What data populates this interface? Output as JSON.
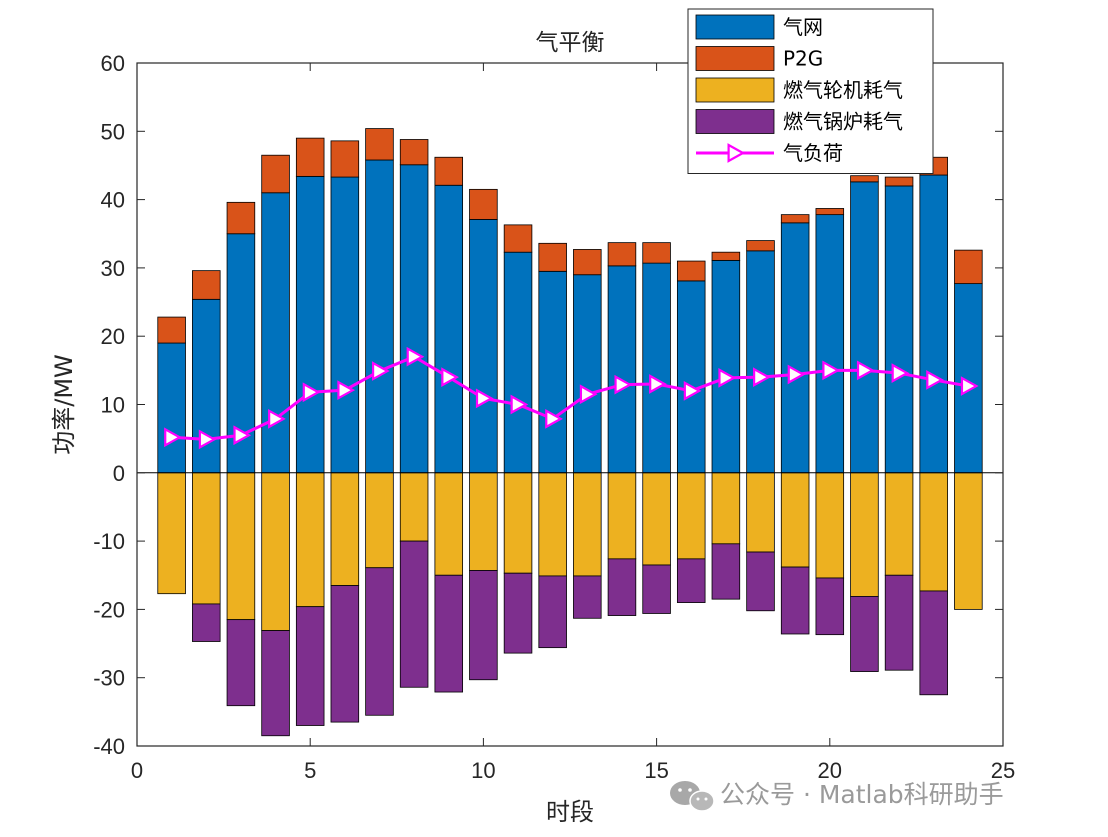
{
  "colors": {
    "grid": "#0072BD",
    "p2g": "#D95319",
    "gt": "#EDB120",
    "boiler": "#7E2F8E",
    "load": "#FF00FF",
    "axis": "#262626"
  },
  "watermark": {
    "text": "公众号 · Matlab科研助手",
    "icon": "wechat-icon"
  },
  "chart_data": {
    "type": "bar",
    "stacked": true,
    "title": "气平衡",
    "xlabel": "时段",
    "ylabel": "功率/MW",
    "xlim": [
      0,
      25
    ],
    "ylim": [
      -40,
      60
    ],
    "xticks": [
      0,
      5,
      10,
      15,
      20,
      25
    ],
    "yticks": [
      -40,
      -30,
      -20,
      -10,
      0,
      10,
      20,
      30,
      40,
      50,
      60
    ],
    "legend_position": "top-right",
    "categories": [
      1,
      2,
      3,
      4,
      5,
      6,
      7,
      8,
      9,
      10,
      11,
      12,
      13,
      14,
      15,
      16,
      17,
      18,
      19,
      20,
      21,
      22,
      23,
      24
    ],
    "series": [
      {
        "name": "气网",
        "kind": "bar-positive",
        "values": [
          19,
          25.4,
          35,
          41,
          43.4,
          43.3,
          45.8,
          45.1,
          42.1,
          37.1,
          32.3,
          29.5,
          29,
          30.3,
          30.7,
          28.1,
          31.1,
          32.5,
          36.6,
          37.8,
          42.6,
          42,
          43.6,
          27.7
        ]
      },
      {
        "name": "P2G",
        "kind": "bar-positive",
        "values": [
          3.8,
          4.2,
          4.6,
          5.5,
          5.6,
          5.3,
          4.6,
          3.7,
          4.1,
          4.4,
          4,
          4.1,
          3.7,
          3.4,
          3,
          2.9,
          1.2,
          1.5,
          1.2,
          0.9,
          0.9,
          1.3,
          2.6,
          4.9
        ]
      },
      {
        "name": "燃气轮机耗气",
        "kind": "bar-negative",
        "values": [
          -17.7,
          -19.2,
          -21.5,
          -23.1,
          -19.6,
          -16.5,
          -13.9,
          -10,
          -15,
          -14.3,
          -14.7,
          -15.1,
          -15.1,
          -12.6,
          -13.5,
          -12.6,
          -10.4,
          -11.6,
          -13.8,
          -15.4,
          -18.1,
          -15,
          -17.3,
          -20
        ]
      },
      {
        "name": "燃气锅炉耗气",
        "kind": "bar-negative",
        "values": [
          0,
          -5.5,
          -12.6,
          -15.4,
          -17.4,
          -20,
          -21.6,
          -21.4,
          -17.1,
          -16,
          -11.7,
          -10.5,
          -6.2,
          -8.3,
          -7.1,
          -6.4,
          -8.1,
          -8.6,
          -9.8,
          -8.3,
          -11,
          -13.9,
          -15.2,
          0
        ]
      },
      {
        "name": "气负荷",
        "kind": "line",
        "values": [
          5.2,
          4.9,
          5.5,
          7.9,
          11.8,
          12.1,
          14.9,
          17,
          14,
          10.9,
          10,
          7.9,
          11.5,
          12.9,
          13,
          12,
          13.9,
          14,
          14.4,
          15,
          15,
          14.6,
          13.6,
          12.7
        ]
      }
    ]
  }
}
